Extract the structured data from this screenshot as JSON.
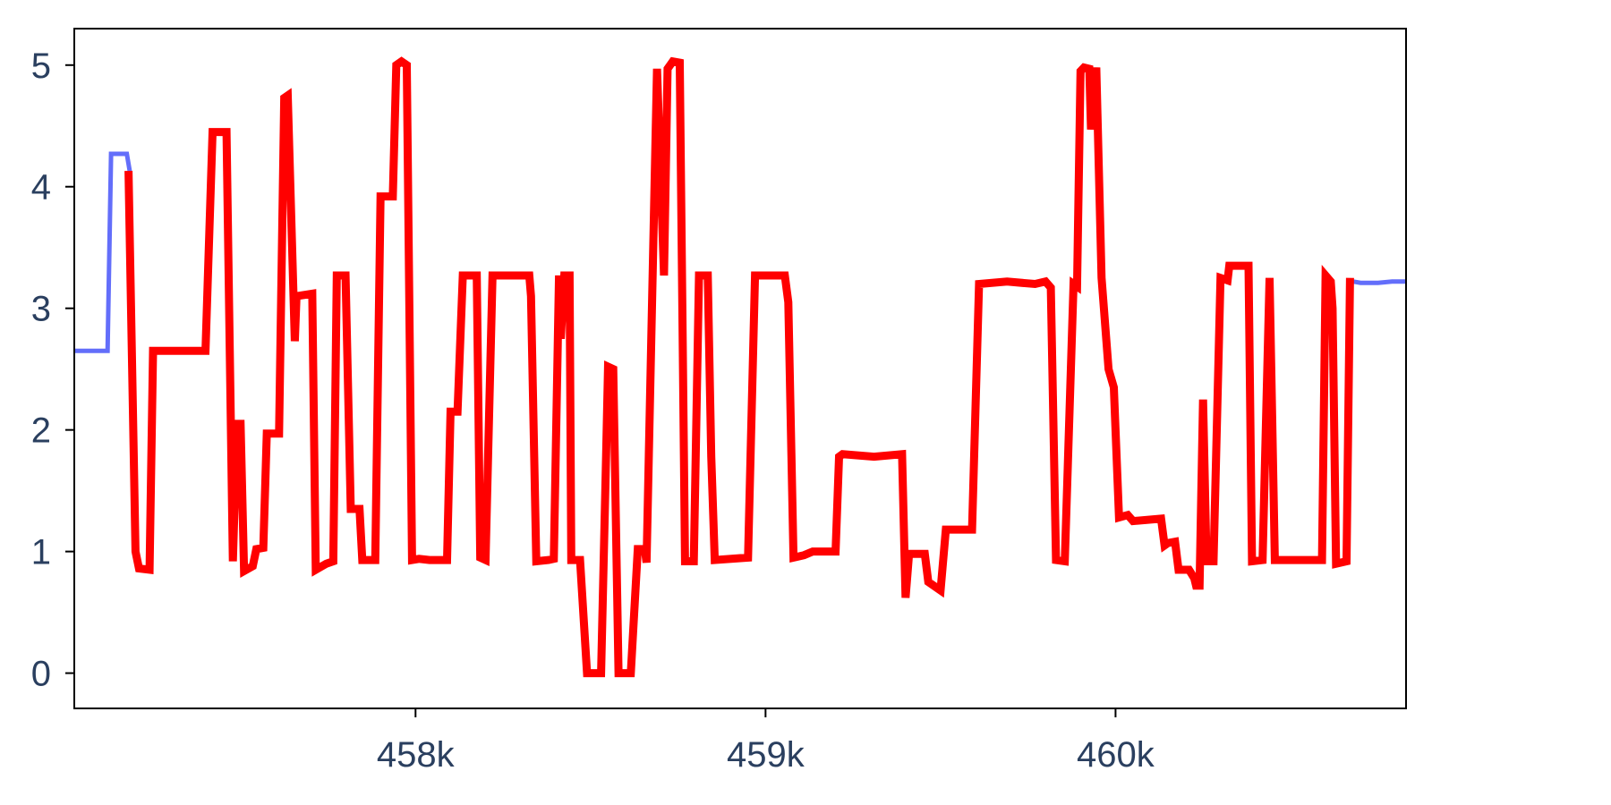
{
  "chart_data": {
    "type": "line",
    "title": "",
    "xlabel": "",
    "ylabel": "",
    "xlim": [
      457025,
      460830
    ],
    "ylim": [
      -0.29,
      5.3
    ],
    "x_ticks": [
      {
        "value": 458000,
        "label": "458k"
      },
      {
        "value": 459000,
        "label": "459k"
      },
      {
        "value": 460000,
        "label": "460k"
      }
    ],
    "y_ticks": [
      {
        "value": 0,
        "label": "0"
      },
      {
        "value": 1,
        "label": "1"
      },
      {
        "value": 2,
        "label": "2"
      },
      {
        "value": 3,
        "label": "3"
      },
      {
        "value": 4,
        "label": "4"
      },
      {
        "value": 5,
        "label": "5"
      }
    ],
    "grid": false,
    "series": [
      {
        "color": "#636efa",
        "points": [
          [
            457025,
            2.65
          ],
          [
            457120,
            2.65
          ],
          [
            457130,
            4.27
          ],
          [
            457175,
            4.27
          ],
          [
            457185,
            4.1
          ],
          [
            457190,
            4.1
          ]
        ]
      },
      {
        "color": "#636efa",
        "points": [
          [
            460680,
            3.22
          ],
          [
            460700,
            3.21
          ],
          [
            460750,
            3.21
          ],
          [
            460790,
            3.22
          ],
          [
            460830,
            3.22
          ]
        ]
      },
      {
        "color": "#ff0000",
        "points": [
          [
            457180,
            4.13
          ],
          [
            457200,
            1.0
          ],
          [
            457210,
            0.86
          ],
          [
            457240,
            0.85
          ],
          [
            457250,
            2.65
          ],
          [
            457400,
            2.65
          ],
          [
            457420,
            4.45
          ],
          [
            457460,
            4.45
          ],
          [
            457478,
            0.92
          ],
          [
            457490,
            2.05
          ],
          [
            457500,
            2.05
          ],
          [
            457510,
            0.84
          ],
          [
            457535,
            0.88
          ],
          [
            457545,
            1.02
          ],
          [
            457565,
            1.03
          ],
          [
            457575,
            1.97
          ],
          [
            457610,
            1.97
          ],
          [
            457625,
            4.73
          ],
          [
            457635,
            4.75
          ],
          [
            457655,
            2.73
          ],
          [
            457660,
            3.1
          ],
          [
            457705,
            3.12
          ],
          [
            457715,
            0.85
          ],
          [
            457745,
            0.9
          ],
          [
            457765,
            0.92
          ],
          [
            457775,
            3.27
          ],
          [
            457800,
            3.27
          ],
          [
            457815,
            1.35
          ],
          [
            457840,
            1.35
          ],
          [
            457848,
            0.93
          ],
          [
            457875,
            0.93
          ],
          [
            457885,
            0.93
          ],
          [
            457900,
            3.92
          ],
          [
            457935,
            3.92
          ],
          [
            457945,
            5.0
          ],
          [
            457960,
            5.03
          ],
          [
            457975,
            5.0
          ],
          [
            457990,
            0.93
          ],
          [
            458010,
            0.94
          ],
          [
            458040,
            0.93
          ],
          [
            458090,
            0.93
          ],
          [
            458100,
            2.15
          ],
          [
            458120,
            2.15
          ],
          [
            458135,
            3.27
          ],
          [
            458175,
            3.27
          ],
          [
            458185,
            0.95
          ],
          [
            458200,
            0.93
          ],
          [
            458220,
            3.27
          ],
          [
            458325,
            3.27
          ],
          [
            458330,
            3.1
          ],
          [
            458345,
            0.92
          ],
          [
            458380,
            0.93
          ],
          [
            458395,
            0.94
          ],
          [
            458410,
            3.27
          ],
          [
            458415,
            2.75
          ],
          [
            458425,
            3.27
          ],
          [
            458440,
            3.27
          ],
          [
            458445,
            0.93
          ],
          [
            458470,
            0.93
          ],
          [
            458490,
            0.0
          ],
          [
            458530,
            0.0
          ],
          [
            458545,
            1.85
          ],
          [
            458550,
            2.52
          ],
          [
            458565,
            2.5
          ],
          [
            458580,
            0.0
          ],
          [
            458615,
            0.0
          ],
          [
            458635,
            1.02
          ],
          [
            458655,
            1.02
          ],
          [
            458660,
            0.91
          ],
          [
            458690,
            4.97
          ],
          [
            458710,
            3.27
          ],
          [
            458720,
            4.97
          ],
          [
            458735,
            5.03
          ],
          [
            458755,
            5.02
          ],
          [
            458770,
            0.92
          ],
          [
            458795,
            0.92
          ],
          [
            458810,
            3.27
          ],
          [
            458835,
            3.27
          ],
          [
            458845,
            1.78
          ],
          [
            458855,
            0.93
          ],
          [
            458950,
            0.95
          ],
          [
            458970,
            3.27
          ],
          [
            459040,
            3.27
          ],
          [
            459055,
            3.27
          ],
          [
            459065,
            3.05
          ],
          [
            459080,
            0.95
          ],
          [
            459110,
            0.97
          ],
          [
            459135,
            1.0
          ],
          [
            459200,
            1.0
          ],
          [
            459210,
            1.78
          ],
          [
            459220,
            1.8
          ],
          [
            459310,
            1.78
          ],
          [
            459390,
            1.8
          ],
          [
            459400,
            0.62
          ],
          [
            459410,
            0.98
          ],
          [
            459455,
            0.98
          ],
          [
            459465,
            0.75
          ],
          [
            459500,
            0.68
          ],
          [
            459515,
            1.18
          ],
          [
            459590,
            1.18
          ],
          [
            459610,
            3.2
          ],
          [
            459690,
            3.22
          ],
          [
            459770,
            3.2
          ],
          [
            459800,
            3.22
          ],
          [
            459815,
            3.17
          ],
          [
            459830,
            0.93
          ],
          [
            459855,
            0.92
          ],
          [
            459880,
            3.2
          ],
          [
            459890,
            3.18
          ],
          [
            459900,
            4.95
          ],
          [
            459910,
            4.98
          ],
          [
            459925,
            4.97
          ],
          [
            459930,
            4.47
          ],
          [
            459945,
            4.98
          ],
          [
            459960,
            3.25
          ],
          [
            459980,
            2.5
          ],
          [
            459995,
            2.35
          ],
          [
            460010,
            1.28
          ],
          [
            460035,
            1.3
          ],
          [
            460050,
            1.25
          ],
          [
            460130,
            1.27
          ],
          [
            460140,
            1.05
          ],
          [
            460150,
            1.07
          ],
          [
            460170,
            1.08
          ],
          [
            460180,
            0.85
          ],
          [
            460210,
            0.85
          ],
          [
            460225,
            0.78
          ],
          [
            460230,
            0.72
          ],
          [
            460240,
            0.72
          ],
          [
            460250,
            2.25
          ],
          [
            460260,
            0.92
          ],
          [
            460280,
            0.92
          ],
          [
            460300,
            3.25
          ],
          [
            460320,
            3.23
          ],
          [
            460325,
            3.35
          ],
          [
            460350,
            3.35
          ],
          [
            460380,
            3.35
          ],
          [
            460390,
            0.92
          ],
          [
            460420,
            0.93
          ],
          [
            460440,
            3.25
          ],
          [
            460455,
            0.93
          ],
          [
            460520,
            0.93
          ],
          [
            460590,
            0.93
          ],
          [
            460600,
            3.27
          ],
          [
            460615,
            3.22
          ],
          [
            460620,
            3.0
          ],
          [
            460630,
            0.9
          ],
          [
            460660,
            0.92
          ],
          [
            460670,
            3.25
          ]
        ]
      }
    ]
  }
}
